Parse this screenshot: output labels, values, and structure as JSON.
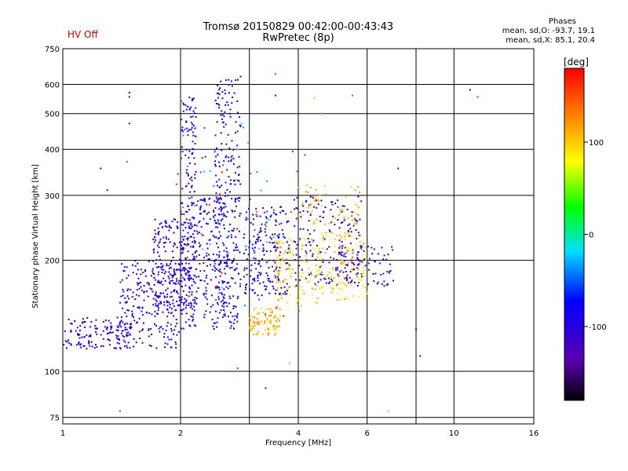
{
  "status_label": "HV Off",
  "title_line1": "Tromsø 20150829 00:42:00-00:43:43",
  "title_line2": "RwPretec (8p)",
  "stats": {
    "heading": "Phases",
    "line_o": "mean, sd,O: -93.7, 19.1",
    "line_x": "mean, sd,X:  85.1, 20.4"
  },
  "chart_data": {
    "type": "scatter",
    "xlabel": "Frequency [MHz]",
    "ylabel": "Stationary phase Virtual Height [km]",
    "xscale": "log",
    "yscale": "log",
    "xlim": [
      1,
      16
    ],
    "ylim": [
      72,
      750
    ],
    "x_ticks": [
      1,
      2,
      4,
      6,
      10,
      16
    ],
    "x_gridlines": [
      2,
      3,
      4,
      6,
      8,
      10
    ],
    "y_ticks": [
      75,
      100,
      200,
      300,
      400,
      500,
      600,
      750
    ],
    "grid": true,
    "colorbar": {
      "label": "[deg]",
      "range": [
        -180,
        180
      ],
      "ticks": [
        100,
        0,
        -100
      ]
    },
    "point_groups": [
      {
        "note": "blue O-mode trace low band",
        "fmin": 1.0,
        "fmax": 1.5,
        "hmin": 115,
        "hmax": 140,
        "phase": -95,
        "count": 140
      },
      {
        "note": "blue O-mode rising",
        "fmin": 1.4,
        "fmax": 2.0,
        "hmin": 115,
        "hmax": 200,
        "phase": -95,
        "count": 230
      },
      {
        "note": "blue O-mode dense",
        "fmin": 1.7,
        "fmax": 2.2,
        "hmin": 150,
        "hmax": 260,
        "phase": -100,
        "count": 220
      },
      {
        "note": "blue column near 2.1",
        "fmin": 2.0,
        "fmax": 2.2,
        "hmin": 130,
        "hmax": 560,
        "phase": -95,
        "count": 180
      },
      {
        "note": "blue mid band",
        "fmin": 2.2,
        "fmax": 2.6,
        "hmin": 130,
        "hmax": 300,
        "phase": -95,
        "count": 160
      },
      {
        "note": "blue column near 2.7",
        "fmin": 2.45,
        "fmax": 2.85,
        "hmin": 130,
        "hmax": 620,
        "phase": -95,
        "count": 260
      },
      {
        "note": "blue upper 3-4",
        "fmin": 2.9,
        "fmax": 3.8,
        "hmin": 160,
        "hmax": 280,
        "phase": -95,
        "count": 200
      },
      {
        "note": "blue 4-5.8",
        "fmin": 3.9,
        "fmax": 5.8,
        "hmin": 170,
        "hmax": 300,
        "phase": -100,
        "count": 170
      },
      {
        "note": "purple trace 5-7",
        "fmin": 5.0,
        "fmax": 7.0,
        "hmin": 170,
        "hmax": 220,
        "phase": -120,
        "count": 90
      },
      {
        "note": "yellow X-mode low",
        "fmin": 3.0,
        "fmax": 3.6,
        "hmin": 125,
        "hmax": 150,
        "phase": 110,
        "count": 90
      },
      {
        "note": "yellow X-mode mid",
        "fmin": 3.5,
        "fmax": 4.5,
        "hmin": 150,
        "hmax": 230,
        "phase": 100,
        "count": 120
      },
      {
        "note": "yellow X-mode 4.5-6",
        "fmin": 4.5,
        "fmax": 6.0,
        "hmin": 155,
        "hmax": 240,
        "phase": 95,
        "count": 130
      },
      {
        "note": "yellow X-mode upper",
        "fmin": 4.0,
        "fmax": 5.8,
        "hmin": 250,
        "hmax": 320,
        "phase": 110,
        "count": 60
      },
      {
        "note": "cyan mixed",
        "fmin": 2.0,
        "fmax": 3.5,
        "hmin": 140,
        "hmax": 500,
        "phase": -40,
        "count": 70
      },
      {
        "note": "red scattered",
        "fmin": 1.8,
        "fmax": 4.5,
        "hmin": 130,
        "hmax": 400,
        "phase": 170,
        "count": 35
      }
    ],
    "points": [
      {
        "x": 1.25,
        "y": 355,
        "phase": -100
      },
      {
        "x": 1.3,
        "y": 310,
        "phase": -100
      },
      {
        "x": 1.48,
        "y": 570,
        "phase": -100
      },
      {
        "x": 1.48,
        "y": 555,
        "phase": -100
      },
      {
        "x": 1.48,
        "y": 470,
        "phase": -100
      },
      {
        "x": 1.46,
        "y": 370,
        "phase": -40
      },
      {
        "x": 1.4,
        "y": 78,
        "phase": -40
      },
      {
        "x": 2.85,
        "y": 630,
        "phase": -100
      },
      {
        "x": 3.5,
        "y": 640,
        "phase": 160
      },
      {
        "x": 3.5,
        "y": 560,
        "phase": -100
      },
      {
        "x": 4.4,
        "y": 550,
        "phase": 110
      },
      {
        "x": 4.6,
        "y": 500,
        "phase": 140
      },
      {
        "x": 5.5,
        "y": 560,
        "phase": -40
      },
      {
        "x": 7.2,
        "y": 355,
        "phase": -100
      },
      {
        "x": 8.0,
        "y": 130,
        "phase": -100
      },
      {
        "x": 8.2,
        "y": 110,
        "phase": -100
      },
      {
        "x": 3.3,
        "y": 90,
        "phase": -100
      },
      {
        "x": 2.8,
        "y": 102,
        "phase": 160
      },
      {
        "x": 3.8,
        "y": 105,
        "phase": 110
      },
      {
        "x": 6.8,
        "y": 78,
        "phase": 110
      },
      {
        "x": 11.0,
        "y": 580,
        "phase": -100
      },
      {
        "x": 11.5,
        "y": 555,
        "phase": 160
      }
    ]
  }
}
